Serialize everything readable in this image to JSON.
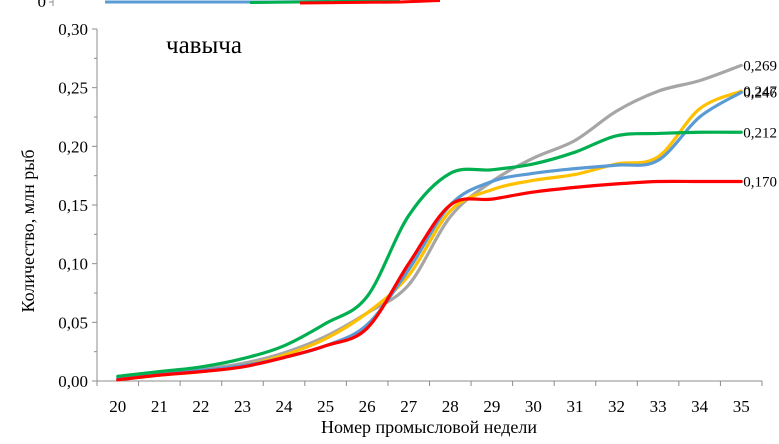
{
  "chart_data": [
    {
      "type": "line",
      "cropped": true,
      "yticks_visible": [
        "0"
      ],
      "series_colors": [
        "#5b9bd5",
        "#ff0000",
        "#00b050"
      ]
    },
    {
      "type": "line",
      "title": "чавыча",
      "xlabel": "Номер промысловой недели",
      "ylabel": "Количество, млн рыб",
      "x": [
        20,
        21,
        22,
        23,
        24,
        25,
        26,
        27,
        28,
        29,
        30,
        31,
        32,
        33,
        34,
        35
      ],
      "xticks": [
        "20",
        "21",
        "22",
        "23",
        "24",
        "25",
        "26",
        "27",
        "28",
        "29",
        "30",
        "31",
        "32",
        "33",
        "34",
        "35"
      ],
      "yticks": [
        "0,00",
        "0,05",
        "0,10",
        "0,15",
        "0,20",
        "0,25",
        "0,30"
      ],
      "ylim": [
        0,
        0.3
      ],
      "grid": false,
      "legend": "none",
      "series": [
        {
          "color": "#a6a6a6",
          "end_label": "0,269",
          "values": [
            0.002,
            0.007,
            0.01,
            0.015,
            0.024,
            0.038,
            0.058,
            0.082,
            0.14,
            0.17,
            0.19,
            0.205,
            0.23,
            0.247,
            0.256,
            0.269
          ]
        },
        {
          "color": "#ffc000",
          "end_label": "0,247",
          "values": [
            0.001,
            0.005,
            0.008,
            0.013,
            0.022,
            0.036,
            0.058,
            0.09,
            0.145,
            0.163,
            0.171,
            0.176,
            0.185,
            0.191,
            0.232,
            0.247
          ]
        },
        {
          "color": "#5b9bd5",
          "end_label": "0,246",
          "values": [
            0.002,
            0.006,
            0.009,
            0.013,
            0.02,
            0.03,
            0.048,
            0.095,
            0.15,
            0.17,
            0.177,
            0.181,
            0.184,
            0.188,
            0.225,
            0.246
          ]
        },
        {
          "color": "#00b050",
          "end_label": "0,212",
          "values": [
            0.004,
            0.008,
            0.012,
            0.019,
            0.03,
            0.049,
            0.072,
            0.141,
            0.177,
            0.18,
            0.185,
            0.195,
            0.209,
            0.211,
            0.212,
            0.212
          ]
        },
        {
          "color": "#ff0000",
          "end_label": "0,170",
          "values": [
            0.001,
            0.005,
            0.008,
            0.012,
            0.02,
            0.03,
            0.045,
            0.1,
            0.15,
            0.155,
            0.161,
            0.165,
            0.168,
            0.17,
            0.17,
            0.17
          ]
        }
      ]
    }
  ]
}
